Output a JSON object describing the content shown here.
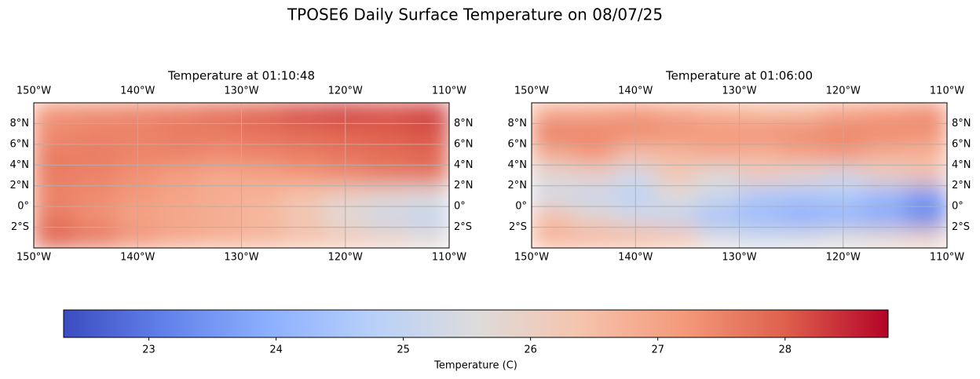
{
  "title": "TPOSE6 Daily Surface Temperature on 08/07/25",
  "chart_data": [
    {
      "type": "heatmap",
      "title": "Temperature at 01:10:48",
      "colormap": "coolwarm",
      "grid": true,
      "xlim": [
        -150,
        -110
      ],
      "ylim": [
        -4,
        10
      ],
      "xticks": [
        {
          "value": -150,
          "label": "150°W"
        },
        {
          "value": -140,
          "label": "140°W"
        },
        {
          "value": -130,
          "label": "130°W"
        },
        {
          "value": -120,
          "label": "120°W"
        },
        {
          "value": -110,
          "label": "110°W"
        }
      ],
      "yticks": [
        {
          "value": -2,
          "label": "2°S"
        },
        {
          "value": 0,
          "label": "0°"
        },
        {
          "value": 2,
          "label": "2°N"
        },
        {
          "value": 4,
          "label": "4°N"
        },
        {
          "value": 6,
          "label": "6°N"
        },
        {
          "value": 8,
          "label": "8°N"
        }
      ],
      "x": [
        -148,
        -144,
        -140,
        -136,
        -132,
        -128,
        -124,
        -120,
        -116,
        -112
      ],
      "y": [
        9,
        7,
        5,
        3,
        1,
        -1,
        -3
      ],
      "z": [
        [
          27.3,
          27.4,
          27.5,
          27.6,
          27.8,
          28.0,
          28.2,
          28.3,
          28.2,
          28.3
        ],
        [
          27.4,
          27.5,
          27.5,
          27.6,
          27.6,
          27.7,
          27.8,
          27.9,
          28.0,
          28.1
        ],
        [
          27.6,
          27.6,
          27.5,
          27.5,
          27.4,
          27.5,
          27.6,
          27.7,
          27.8,
          27.9
        ],
        [
          27.6,
          27.5,
          27.3,
          27.1,
          26.9,
          27.0,
          27.2,
          27.4,
          27.6,
          27.7
        ],
        [
          27.5,
          27.4,
          27.2,
          27.0,
          26.8,
          26.7,
          26.4,
          26.0,
          25.8,
          25.6
        ],
        [
          27.6,
          27.3,
          27.0,
          26.9,
          26.8,
          26.6,
          26.2,
          25.6,
          25.2,
          25.0
        ],
        [
          28.0,
          27.7,
          27.3,
          27.0,
          26.8,
          26.7,
          26.5,
          26.3,
          26.0,
          25.7
        ]
      ]
    },
    {
      "type": "heatmap",
      "title": "Temperature at 01:06:00",
      "colormap": "coolwarm",
      "grid": true,
      "xlim": [
        -150,
        -110
      ],
      "ylim": [
        -4,
        10
      ],
      "xticks": [
        {
          "value": -150,
          "label": "150°W"
        },
        {
          "value": -140,
          "label": "140°W"
        },
        {
          "value": -130,
          "label": "130°W"
        },
        {
          "value": -120,
          "label": "120°W"
        },
        {
          "value": -110,
          "label": "110°W"
        }
      ],
      "yticks": [
        {
          "value": -2,
          "label": "2°S"
        },
        {
          "value": 0,
          "label": "0°"
        },
        {
          "value": 2,
          "label": "2°N"
        },
        {
          "value": 4,
          "label": "4°N"
        },
        {
          "value": 6,
          "label": "6°N"
        },
        {
          "value": 8,
          "label": "8°N"
        }
      ],
      "x": [
        -148,
        -144,
        -140,
        -136,
        -132,
        -128,
        -124,
        -120,
        -116,
        -112
      ],
      "y": [
        9,
        7,
        5,
        3,
        1,
        -1,
        -3
      ],
      "z": [
        [
          26.9,
          27.0,
          27.2,
          27.0,
          26.8,
          26.6,
          26.6,
          27.0,
          27.2,
          27.4
        ],
        [
          27.6,
          27.5,
          27.4,
          27.3,
          27.2,
          27.3,
          27.4,
          27.5,
          27.4,
          27.3
        ],
        [
          26.8,
          27.2,
          26.5,
          26.6,
          26.9,
          26.7,
          27.0,
          27.2,
          26.8,
          26.7
        ],
        [
          25.7,
          25.9,
          25.3,
          26.2,
          25.6,
          26.1,
          25.8,
          25.4,
          26.0,
          26.3
        ],
        [
          25.3,
          25.1,
          24.9,
          25.6,
          25.2,
          24.6,
          24.5,
          24.6,
          24.2,
          23.6
        ],
        [
          26.4,
          25.8,
          25.3,
          25.0,
          24.4,
          24.2,
          23.9,
          24.0,
          23.8,
          23.2
        ],
        [
          26.8,
          26.7,
          26.6,
          26.4,
          25.5,
          25.3,
          25.4,
          25.6,
          25.8,
          26.0
        ]
      ]
    },
    {
      "type": "colorbar",
      "colormap": "coolwarm",
      "xlabel": "Temperature (C)",
      "xlim": [
        22.33,
        28.81
      ],
      "xticks": [
        23,
        24,
        25,
        26,
        27,
        28
      ]
    }
  ]
}
